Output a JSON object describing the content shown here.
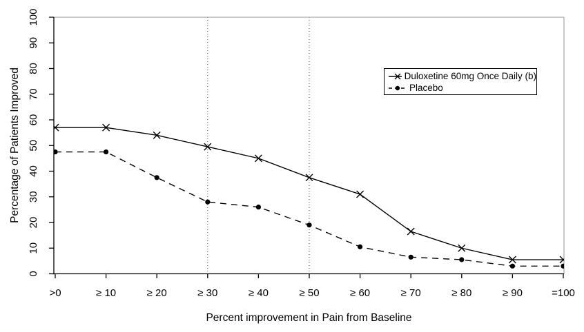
{
  "chart_data": {
    "type": "line",
    "title": "",
    "xlabel": "Percent improvement in Pain from Baseline",
    "ylabel": "Percentage of Patients Improved",
    "categories": [
      ">0",
      "≥ 10",
      "≥ 20",
      "≥ 30",
      "≥ 40",
      "≥ 50",
      "≥ 60",
      "≥ 70",
      "≥ 80",
      "≥ 90",
      "=100"
    ],
    "y_ticks": [
      0,
      10,
      20,
      30,
      40,
      50,
      60,
      70,
      80,
      90,
      100
    ],
    "ylim": [
      0,
      100
    ],
    "grid": "off",
    "series": [
      {
        "name": "Duloxetine 60mg Once Daily (b)",
        "line_style": "solid",
        "marker": "x",
        "color": "#000000",
        "values": [
          57,
          57,
          54,
          49.5,
          45,
          37.5,
          31,
          16.5,
          10,
          5.5,
          5.5
        ]
      },
      {
        "name": "Placebo",
        "line_style": "dashed",
        "marker": "dot",
        "color": "#000000",
        "values": [
          47.5,
          47.5,
          37.5,
          28,
          26,
          19,
          10.5,
          6.5,
          5.5,
          3,
          3
        ]
      }
    ],
    "reference_line_categories": [
      "≥ 30",
      "≥ 50"
    ],
    "legend_position": "top-right",
    "colors": {
      "axis": "#000000",
      "frame": "#aaaaaa",
      "reference_line": "#555555",
      "background": "#ffffff",
      "text": "#000000"
    }
  }
}
